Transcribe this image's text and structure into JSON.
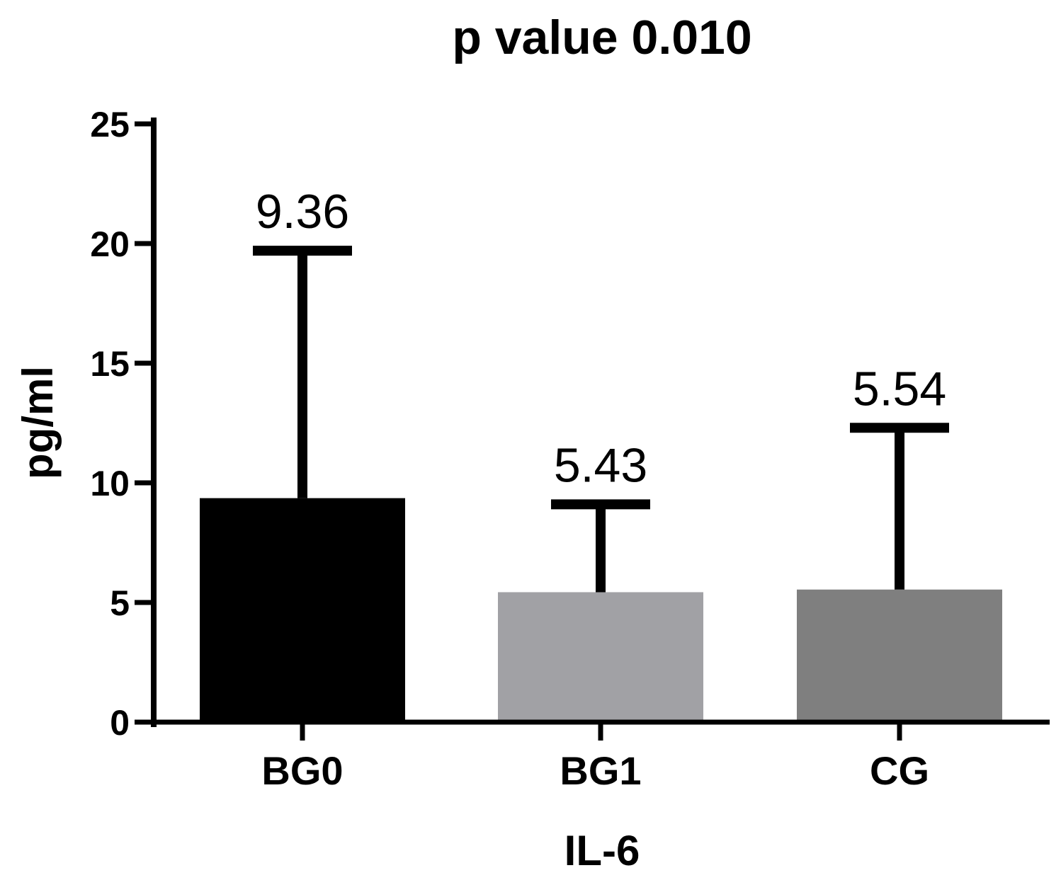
{
  "chart_data": {
    "type": "bar",
    "title": "p value 0.010",
    "xlabel": "IL-6",
    "ylabel": "pg/ml",
    "categories": [
      "BG0",
      "BG1",
      "CG"
    ],
    "values": [
      9.36,
      5.43,
      5.54
    ],
    "error_upper": [
      19.7,
      9.1,
      12.3
    ],
    "data_labels": [
      "9.36",
      "5.43",
      "5.54"
    ],
    "bar_colors": [
      "#000000",
      "#a1a1a5",
      "#7f7f7f"
    ],
    "ylim": [
      0,
      25
    ],
    "yticks": [
      0,
      5,
      10,
      15,
      20,
      25
    ],
    "ytick_labels": [
      "0",
      "5",
      "10",
      "15",
      "20",
      "25"
    ],
    "grid": false,
    "legend": "none"
  }
}
